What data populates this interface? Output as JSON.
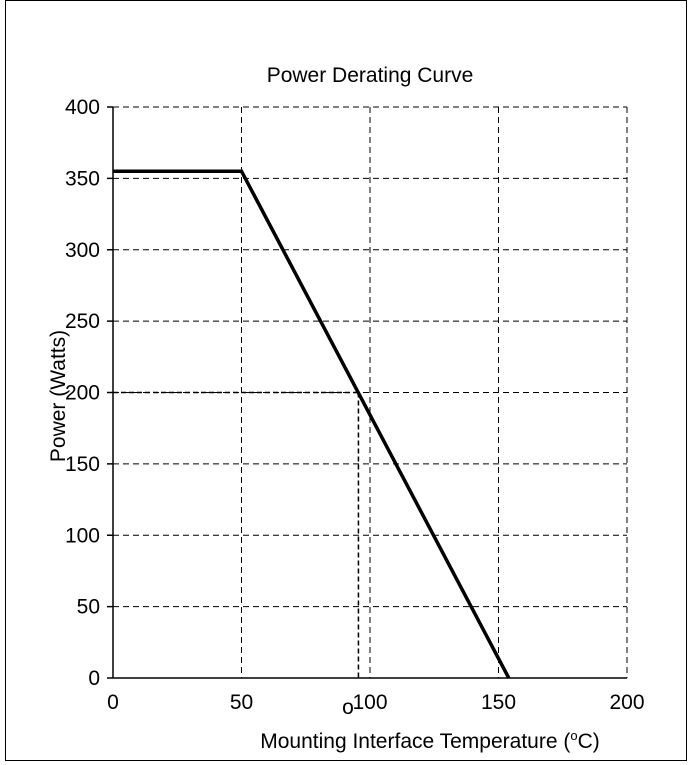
{
  "chart_data": {
    "type": "line",
    "title": "Power Derating Curve",
    "xlabel": "Mounting Interface Temperature (",
    "xlabel_sup": "o",
    "xlabel_unit": "C)",
    "ylabel": "Power (Watts)",
    "xlim": [
      0,
      200
    ],
    "ylim": [
      0,
      400
    ],
    "x_ticks": [
      0,
      50,
      100,
      150,
      200
    ],
    "y_ticks": [
      0,
      50,
      100,
      150,
      200,
      250,
      300,
      350,
      400
    ],
    "grid": true,
    "series": [
      {
        "x": [
          0,
          50,
          154
        ],
        "y": [
          355,
          355,
          0
        ]
      }
    ],
    "annotations": [
      {
        "type": "dashed-guide",
        "x": 95.5,
        "y": 200
      }
    ],
    "stray_text": "o"
  },
  "colors": {
    "line": "#000000",
    "grid": "#000000",
    "background": "#ffffff"
  }
}
